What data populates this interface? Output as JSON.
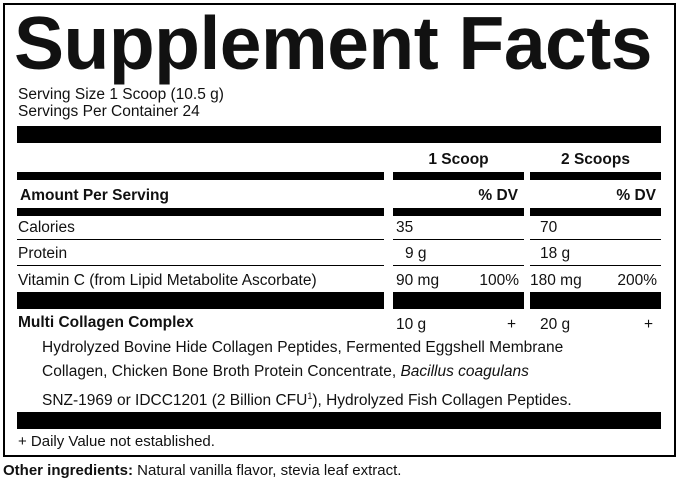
{
  "title": "Supplement Facts",
  "serving_size": "Serving Size 1 Scoop (10.5 g)",
  "servings_per_container": "Servings Per Container 24",
  "columns": [
    "1 Scoop",
    "2 Scoops"
  ],
  "amount_per_serving": "Amount Per Serving",
  "dv_label": "% DV",
  "rows": [
    {
      "name": "Calories",
      "c1": "35",
      "dv1": "",
      "c2": "70",
      "dv2": ""
    },
    {
      "name": "Protein",
      "c1": "9 g",
      "dv1": "",
      "c2": "18 g",
      "dv2": ""
    },
    {
      "name": "Vitamin C (from Lipid Metabolite Ascorbate)",
      "c1": "90 mg",
      "dv1": "100%",
      "c2": "180 mg",
      "dv2": "200%"
    }
  ],
  "blend": {
    "name": "Multi Collagen Complex",
    "c1": "10 g",
    "dv1": "+",
    "c2": "20 g",
    "dv2": "+",
    "line1": "Hydrolyzed Bovine Hide Collagen Peptides, Fermented Eggshell Membrane",
    "line2a": "Collagen, Chicken Bone Broth Protein Concentrate, ",
    "line2b": "Bacillus coagulans",
    "line3a": "SNZ-1969 or IDCC1201 (2 Billion CFU",
    "line3sup": "1",
    "line3b": "), Hydrolyzed Fish Collagen Peptides."
  },
  "footnote": "+ Daily Value not established.",
  "other_label": "Other ingredients:",
  "other_text": " Natural vanilla flavor, stevia leaf extract."
}
